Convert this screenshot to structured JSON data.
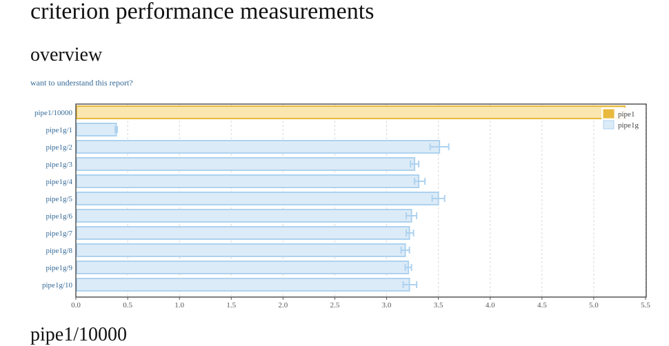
{
  "page": {
    "title": "criterion performance measurements",
    "overview_heading": "overview",
    "explain_link": "want to understand this report?",
    "next_heading": "pipe1/10000"
  },
  "chart_data": {
    "type": "bar",
    "orientation": "horizontal",
    "categories": [
      "pipe1/10000",
      "pipe1g/1",
      "pipe1g/2",
      "pipe1g/3",
      "pipe1g/4",
      "pipe1g/5",
      "pipe1g/6",
      "pipe1g/7",
      "pipe1g/8",
      "pipe1g/9",
      "pipe1g/10"
    ],
    "series": [
      {
        "name": "pipe1",
        "color": "#e8b93c",
        "fill": "#fae7b0",
        "values": [
          5.3,
          null,
          null,
          null,
          null,
          null,
          null,
          null,
          null,
          null,
          null
        ],
        "err_low": [
          null,
          null,
          null,
          null,
          null,
          null,
          null,
          null,
          null,
          null,
          null
        ],
        "err_high": [
          null,
          null,
          null,
          null,
          null,
          null,
          null,
          null,
          null,
          null,
          null
        ]
      },
      {
        "name": "pipe1g",
        "color": "#aed2ef",
        "fill": "#dcebf8",
        "values": [
          null,
          0.39,
          3.51,
          3.27,
          3.31,
          3.5,
          3.24,
          3.22,
          3.18,
          3.21,
          3.22
        ],
        "err_low": [
          null,
          0.38,
          3.42,
          3.23,
          3.27,
          3.44,
          3.19,
          3.19,
          3.14,
          3.18,
          3.16
        ],
        "err_high": [
          null,
          0.4,
          3.6,
          3.31,
          3.37,
          3.56,
          3.29,
          3.26,
          3.22,
          3.24,
          3.29
        ]
      }
    ],
    "xlim": [
      0,
      5.5
    ],
    "xticks": [
      "0.0",
      "0.5",
      "1.0",
      "1.5",
      "2.0",
      "2.5",
      "3.0",
      "3.5",
      "4.0",
      "4.5",
      "5.0",
      "5.5"
    ],
    "grid": true,
    "legend": "top-right",
    "title": "",
    "xlabel": "",
    "ylabel": ""
  }
}
